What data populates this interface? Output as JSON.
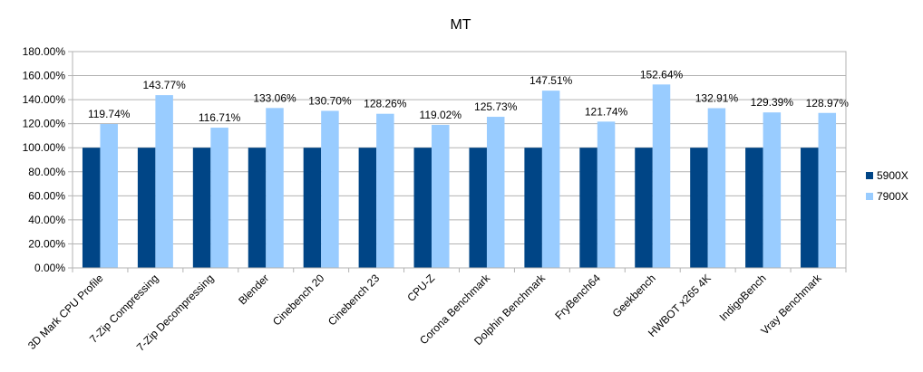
{
  "chart_data": {
    "type": "bar",
    "title": "MT",
    "xlabel": "",
    "ylabel": "",
    "ylim": [
      0,
      180
    ],
    "y_ticks": [
      "0.00%",
      "20.00%",
      "40.00%",
      "60.00%",
      "80.00%",
      "100.00%",
      "120.00%",
      "140.00%",
      "160.00%",
      "180.00%"
    ],
    "y_tick_values": [
      0,
      20,
      40,
      60,
      80,
      100,
      120,
      140,
      160,
      180
    ],
    "grid": true,
    "legend_position": "right",
    "categories": [
      "3D Mark CPU Profile",
      "7-Zip Compressing",
      "7-Zip Decompressing",
      "Blender",
      "Cinebench 20",
      "Cinebench 23",
      "CPU-Z",
      "Corona Benchmark",
      "Dolphin Benchmark",
      "FryBench64",
      "Geekbench",
      "HWBOT x265 4K",
      "IndigoBench",
      "Vray Benchmark"
    ],
    "series": [
      {
        "name": "5900X",
        "color": "#004586",
        "values": [
          100,
          100,
          100,
          100,
          100,
          100,
          100,
          100,
          100,
          100,
          100,
          100,
          100,
          100
        ]
      },
      {
        "name": "7900X",
        "color": "#99ccff",
        "values": [
          119.74,
          143.77,
          116.71,
          133.06,
          130.7,
          128.26,
          119.02,
          125.73,
          147.51,
          121.74,
          152.64,
          132.91,
          129.39,
          128.97
        ],
        "data_labels": [
          "119.74%",
          "143.77%",
          "116.71%",
          "133.06%",
          "130.70%",
          "128.26%",
          "119.02%",
          "125.73%",
          "147.51%",
          "121.74%",
          "152.64%",
          "132.91%",
          "129.39%",
          "128.97%"
        ]
      }
    ]
  }
}
